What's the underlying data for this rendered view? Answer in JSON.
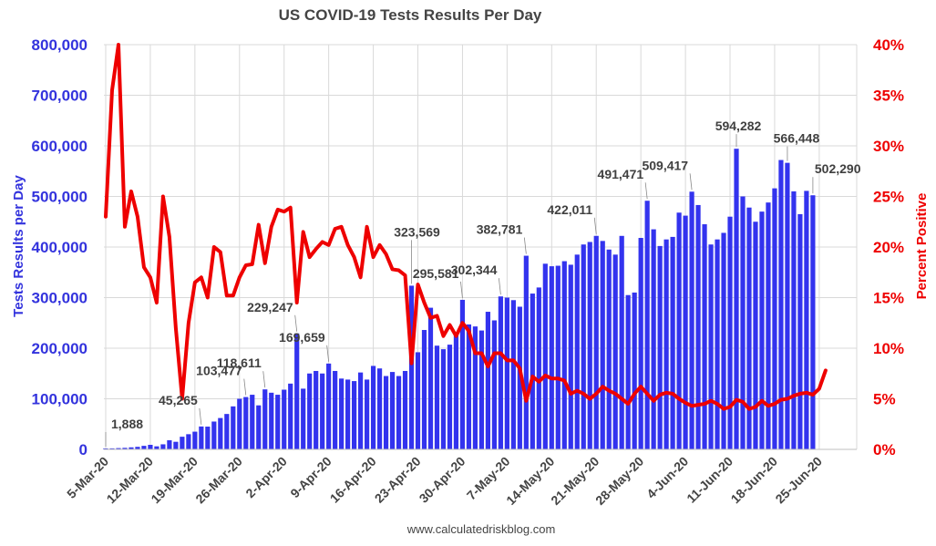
{
  "chart_data": {
    "type": "bar+line",
    "title": "US COVID-19 Tests Results Per Day",
    "source": "www.calculatedriskblog.com",
    "colors": {
      "bars": "#3333ee",
      "line": "#ee0000",
      "left_axis": "#3333dd",
      "right_axis": "#ee0000",
      "grid": "#d9d9d9"
    },
    "left_axis": {
      "title": "Tests Results per Day",
      "ylim": [
        0,
        800000
      ],
      "ticks": [
        0,
        100000,
        200000,
        300000,
        400000,
        500000,
        600000,
        700000,
        800000
      ],
      "tick_labels": [
        "0",
        "100,000",
        "200,000",
        "300,000",
        "400,000",
        "500,000",
        "600,000",
        "700,000",
        "800,000"
      ]
    },
    "right_axis": {
      "title": "Percent Positive",
      "ylim": [
        0,
        40
      ],
      "ticks": [
        0,
        5,
        10,
        15,
        20,
        25,
        30,
        35,
        40
      ],
      "tick_labels": [
        "0%",
        "5%",
        "10%",
        "15%",
        "20%",
        "25%",
        "30%",
        "35%",
        "40%"
      ]
    },
    "x_tick_labels": [
      "5-Mar-20",
      "12-Mar-20",
      "19-Mar-20",
      "26-Mar-20",
      "2-Apr-20",
      "9-Apr-20",
      "16-Apr-20",
      "23-Apr-20",
      "30-Apr-20",
      "7-May-20",
      "14-May-20",
      "21-May-20",
      "28-May-20",
      "4-Jun-20",
      "11-Jun-20",
      "18-Jun-20",
      "25-Jun-20"
    ],
    "series": [
      {
        "name": "Tests Results per Day",
        "axis": "left",
        "kind": "bar",
        "values": [
          1888,
          2000,
          2500,
          3000,
          4000,
          5000,
          7000,
          9000,
          6000,
          10000,
          18000,
          15000,
          25000,
          30000,
          35000,
          45265,
          45000,
          55000,
          62000,
          70000,
          85000,
          100000,
          103477,
          108000,
          87000,
          118611,
          112000,
          108000,
          118000,
          130000,
          229247,
          120000,
          150000,
          155000,
          150000,
          169659,
          155000,
          140000,
          138000,
          135000,
          152000,
          138000,
          165000,
          160000,
          145000,
          153000,
          145000,
          155000,
          323569,
          192000,
          236000,
          280000,
          205000,
          198000,
          207000,
          230000,
          295581,
          247000,
          243000,
          235000,
          272000,
          255000,
          302344,
          300000,
          295000,
          282000,
          382781,
          308000,
          320000,
          367000,
          362000,
          363000,
          372000,
          365000,
          385000,
          405000,
          410000,
          422011,
          412000,
          395000,
          385000,
          422000,
          305000,
          310000,
          418000,
          491471,
          435000,
          402000,
          415000,
          420000,
          468000,
          462000,
          509417,
          483000,
          445000,
          405000,
          415000,
          428000,
          460000,
          594282,
          500000,
          478000,
          450000,
          470000,
          488000,
          516000,
          572000,
          566448,
          510000,
          465000,
          511000,
          502290
        ],
        "data_labels": [
          {
            "index": 0,
            "text": "1,888"
          },
          {
            "index": 15,
            "text": "45,265"
          },
          {
            "index": 22,
            "text": "103,477"
          },
          {
            "index": 25,
            "text": "118,611"
          },
          {
            "index": 30,
            "text": "229,247"
          },
          {
            "index": 35,
            "text": "169,659"
          },
          {
            "index": 48,
            "text": "323,569"
          },
          {
            "index": 56,
            "text": "295,581"
          },
          {
            "index": 62,
            "text": "302,344"
          },
          {
            "index": 66,
            "text": "382,781"
          },
          {
            "index": 77,
            "text": "422,011"
          },
          {
            "index": 85,
            "text": "491,471"
          },
          {
            "index": 92,
            "text": "509,417"
          },
          {
            "index": 99,
            "text": "594,282"
          },
          {
            "index": 107,
            "text": "566,448"
          },
          {
            "index": 111,
            "text": "502,290"
          }
        ]
      },
      {
        "name": "Percent Positive",
        "axis": "right",
        "kind": "line",
        "values": [
          23,
          35.5,
          40,
          22,
          25.5,
          23,
          18,
          17,
          14.5,
          25,
          21,
          12,
          5,
          12.5,
          16.5,
          17,
          15,
          20,
          19.5,
          15.2,
          15.2,
          17,
          18.2,
          18.3,
          22.2,
          18.4,
          22,
          23.7,
          23.5,
          23.9,
          14.5,
          21.5,
          19,
          19.8,
          20.5,
          20.2,
          21.8,
          22,
          20.2,
          19,
          17,
          22,
          19,
          20.2,
          19.3,
          17.8,
          17.7,
          17.2,
          8.5,
          16.3,
          14.5,
          13,
          13.2,
          11.2,
          12.3,
          11.2,
          12.5,
          11.7,
          9.5,
          9.5,
          8.2,
          9.5,
          9.5,
          8.8,
          8.8,
          8,
          4.8,
          7.2,
          6.7,
          7.3,
          7,
          7,
          6.8,
          5.5,
          5.8,
          5.5,
          5,
          5.5,
          6.2,
          5.8,
          5.5,
          5,
          4.5,
          5.5,
          6.2,
          5.5,
          4.8,
          5.4,
          5.6,
          5.5,
          5,
          4.6,
          4.3,
          4.4,
          4.5,
          4.8,
          4.5,
          4,
          4.2,
          4.9,
          4.7,
          4,
          4.2,
          4.8,
          4.3,
          4.5,
          4.9,
          5,
          5.3,
          5.5,
          5.6,
          5.4,
          6,
          7.8
        ]
      }
    ]
  }
}
